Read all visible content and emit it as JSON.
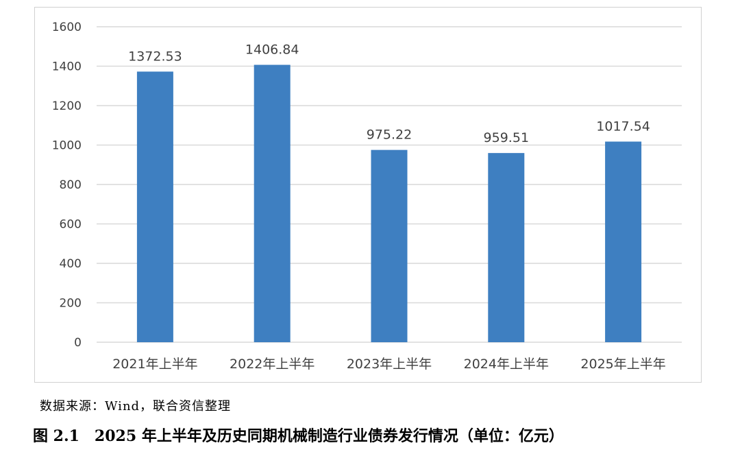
{
  "chart_data": {
    "type": "bar",
    "categories": [
      "2021年上半年",
      "2022年上半年",
      "2023年上半年",
      "2024年上半年",
      "2025年上半年"
    ],
    "values": [
      1372.53,
      1406.84,
      975.22,
      959.51,
      1017.54
    ],
    "data_labels": [
      "1372.53",
      "1406.84",
      "975.22",
      "959.51",
      "1017.54"
    ],
    "ylim": [
      0,
      1600
    ],
    "yticks": [
      0,
      200,
      400,
      600,
      800,
      1000,
      1200,
      1400,
      1600
    ],
    "grid": true,
    "bar_color": "#3e7fc1",
    "grid_color": "#d9d9d9"
  },
  "source_note": "数据来源：Wind，联合资信整理",
  "caption": "图 2.1　2025 年上半年及历史同期机械制造行业债券发行情况（单位：亿元）"
}
